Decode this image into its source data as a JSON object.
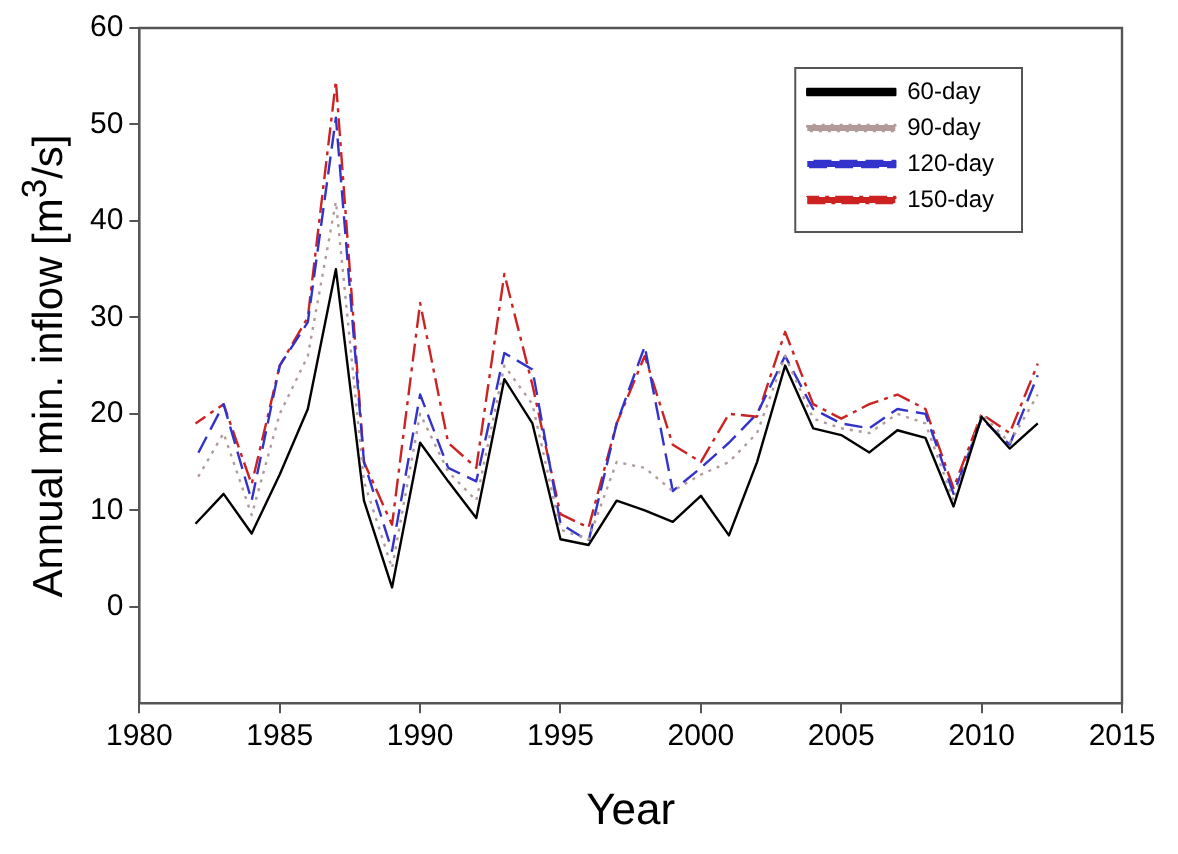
{
  "chart_data": {
    "type": "line",
    "xlabel": "Year",
    "ylabel": "Annual min. inflow [m$^{3}$/s]",
    "x": [
      1982,
      1983,
      1984,
      1985,
      1986,
      1987,
      1988,
      1989,
      1990,
      1991,
      1992,
      1993,
      1994,
      1995,
      1996,
      1997,
      1998,
      1999,
      2000,
      2001,
      2002,
      2003,
      2004,
      2005,
      2006,
      2007,
      2008,
      2009,
      2010,
      2011,
      2012
    ],
    "series": [
      {
        "name": "60-day",
        "color": "#000000",
        "line_style": "solid",
        "values": [
          8.6,
          11.7,
          7.6,
          13.7,
          20.5,
          35,
          11,
          2,
          17,
          13,
          9.2,
          23.6,
          19,
          7,
          6.4,
          11,
          10,
          8.8,
          11.5,
          7.4,
          15,
          25,
          18.5,
          17.8,
          16,
          18.3,
          17.5,
          10.4,
          19.7,
          16.4,
          19
        ]
      },
      {
        "name": "90-day",
        "color": "#b09a9a",
        "line_style": "dotted",
        "values": [
          13,
          18,
          9.5,
          20,
          26,
          42,
          13,
          4,
          20,
          14,
          11,
          25,
          21,
          8,
          7,
          15,
          14.4,
          12,
          13.7,
          15,
          18,
          26,
          19.5,
          18.5,
          18,
          20,
          19,
          11,
          20,
          17,
          22
        ]
      },
      {
        "name": "120-day",
        "color": "#3333cc",
        "line_style": "dashed",
        "values": [
          15.4,
          21,
          11,
          25,
          29.5,
          50.7,
          15,
          5.8,
          22,
          14.4,
          13,
          26.3,
          24.6,
          8.6,
          6.8,
          19,
          27,
          12,
          14.4,
          17,
          20,
          26,
          20.5,
          19,
          18.5,
          20.5,
          20,
          11.7,
          19.5,
          16.8,
          24
        ]
      },
      {
        "name": "150-day",
        "color": "#cc2222",
        "line_style": "dashdot",
        "values": [
          19,
          21,
          12.7,
          25,
          30,
          54.5,
          15,
          8.5,
          31.5,
          17,
          14.4,
          34.5,
          23,
          9.6,
          8.2,
          19,
          26,
          16.8,
          15,
          20,
          19.7,
          28.5,
          21,
          19.5,
          21,
          22,
          20.5,
          12.3,
          20,
          18,
          25.2
        ]
      }
    ],
    "xlim": [
      1980,
      2015
    ],
    "xticks": [
      1980,
      1985,
      1990,
      1995,
      2000,
      2005,
      2010,
      2015
    ],
    "ylim": [
      -10,
      60
    ],
    "yticks": [
      0,
      10,
      20,
      30,
      40,
      50,
      60
    ],
    "legend": "top right",
    "grid": false,
    "marker": "none"
  }
}
